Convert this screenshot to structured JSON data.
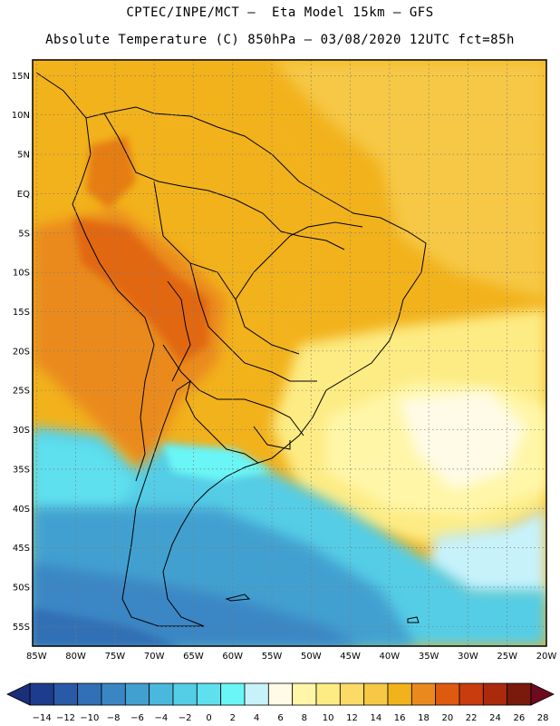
{
  "header": {
    "line1": "CPTEC/INPE/MCT –  Eta Model 15km – GFS",
    "line2": "Absolute Temperature (C) 850hPa – 03/08/2020 12UTC fct=85h"
  },
  "map": {
    "lat_labels": [
      "15N",
      "10N",
      "5N",
      "EQ",
      "5S",
      "10S",
      "15S",
      "20S",
      "25S",
      "30S",
      "35S",
      "40S",
      "45S",
      "50S",
      "55S"
    ],
    "lat_values": [
      15,
      10,
      5,
      0,
      -5,
      -10,
      -15,
      -20,
      -25,
      -30,
      -35,
      -40,
      -45,
      -50,
      -55
    ],
    "lon_labels": [
      "85W",
      "80W",
      "75W",
      "70W",
      "65W",
      "60W",
      "55W",
      "50W",
      "45W",
      "40W",
      "35W",
      "30W",
      "25W",
      "20W"
    ],
    "lon_values": [
      -85,
      -80,
      -75,
      -70,
      -65,
      -60,
      -55,
      -50,
      -45,
      -40,
      -35,
      -30,
      -25,
      -20
    ],
    "lon_range": [
      -85.5,
      -20
    ],
    "lat_range": [
      -57.5,
      17
    ],
    "gridlines": "dotted"
  },
  "colorbar": {
    "labels": [
      "-14",
      "-12",
      "-10",
      "-8",
      "-6",
      "-4",
      "-2",
      "0",
      "2",
      "4",
      "6",
      "8",
      "10",
      "12",
      "14",
      "16",
      "18",
      "20",
      "22",
      "24",
      "26",
      "28"
    ],
    "colors": [
      "#1e3c8c",
      "#2a5aa6",
      "#3170b5",
      "#3a86c4",
      "#42a0d0",
      "#4ab8dc",
      "#54cde6",
      "#5ee0ee",
      "#6af6f6",
      "#c8f2fa",
      "#fffbe6",
      "#fff6a8",
      "#fdec84",
      "#fbdb66",
      "#f6c845",
      "#f2b21c",
      "#ea8a1e",
      "#de5a0e",
      "#c83c0e",
      "#aa2a0c",
      "#7a1a0c"
    ],
    "low_arrow_color": "#1a2e7a",
    "high_arrow_color": "#6e0a1e"
  }
}
